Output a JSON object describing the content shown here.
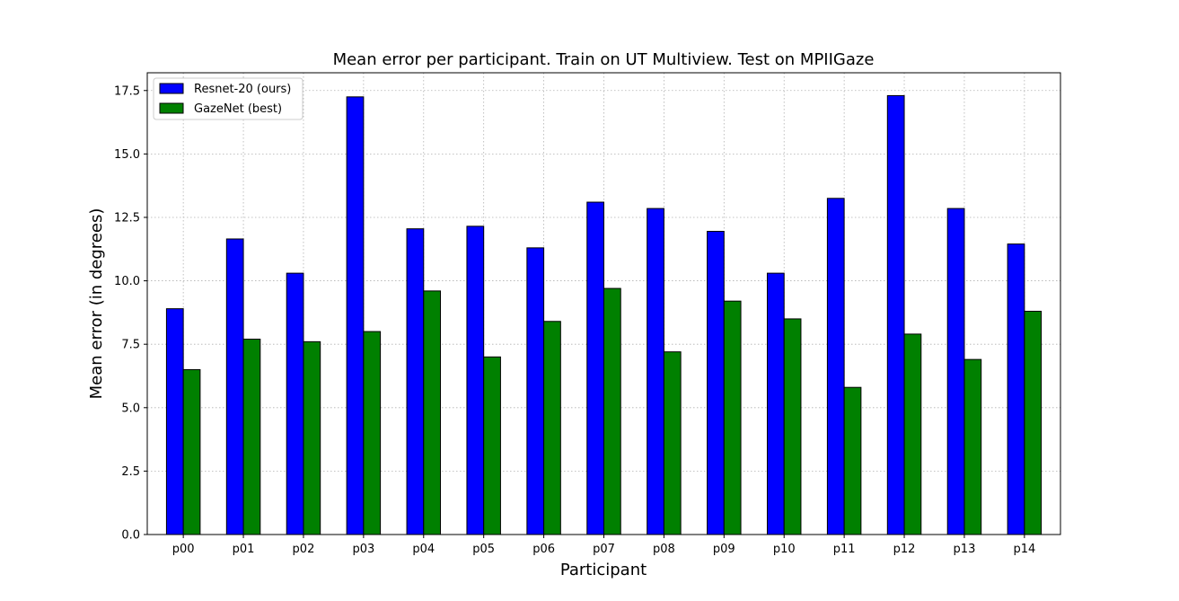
{
  "chart_data": {
    "type": "bar",
    "title": "Mean error per participant. Train on UT Multiview. Test on MPIIGaze",
    "xlabel": "Participant",
    "ylabel": "Mean error (in degrees)",
    "categories": [
      "p00",
      "p01",
      "p02",
      "p03",
      "p04",
      "p05",
      "p06",
      "p07",
      "p08",
      "p09",
      "p10",
      "p11",
      "p12",
      "p13",
      "p14"
    ],
    "series": [
      {
        "name": "Resnet-20 (ours)",
        "color": "#0000ff",
        "values": [
          8.9,
          11.65,
          10.3,
          17.25,
          12.05,
          12.15,
          11.3,
          13.1,
          12.85,
          11.95,
          10.3,
          13.25,
          17.3,
          12.85,
          11.45
        ]
      },
      {
        "name": "GazeNet (best)",
        "color": "#008000",
        "values": [
          6.5,
          7.7,
          7.6,
          8.0,
          9.6,
          7.0,
          8.4,
          9.7,
          7.2,
          9.2,
          8.5,
          5.8,
          7.9,
          6.9,
          8.8
        ]
      }
    ],
    "ylim": [
      0,
      18.2
    ],
    "yticks": [
      "0.0",
      "2.5",
      "5.0",
      "7.5",
      "10.0",
      "12.5",
      "15.0",
      "17.5"
    ],
    "grid": true,
    "legend_position": "top-left"
  }
}
